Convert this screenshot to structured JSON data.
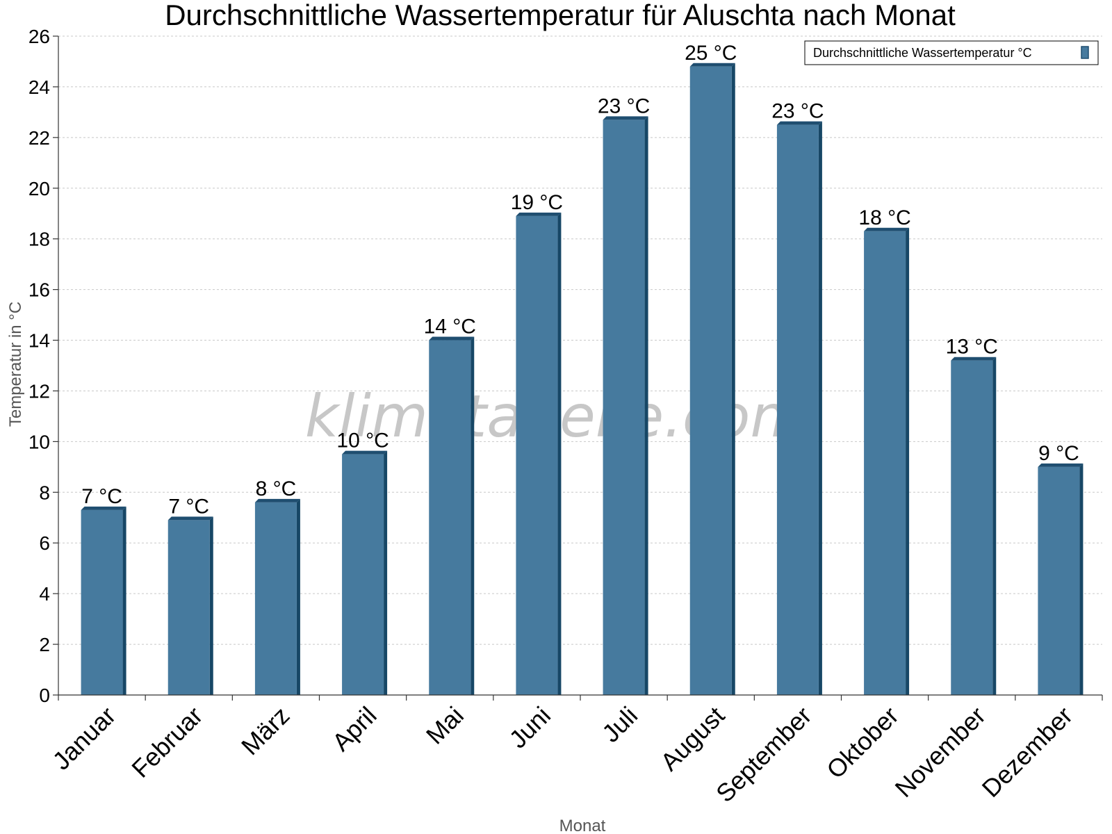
{
  "chart_data": {
    "type": "bar",
    "title": "Durchschnittliche Wassertemperatur für Aluschta nach Monat",
    "xlabel": "Monat",
    "ylabel": "Temperatur in °C",
    "categories": [
      "Januar",
      "Februar",
      "März",
      "April",
      "Mai",
      "Juni",
      "Juli",
      "August",
      "September",
      "Oktober",
      "November",
      "Dezember"
    ],
    "series": [
      {
        "name": "Durchschnittliche Wassertemperatur °C",
        "values": [
          7.3,
          6.9,
          7.6,
          9.5,
          14.0,
          18.9,
          22.7,
          24.8,
          22.5,
          18.3,
          13.2,
          9.0
        ],
        "labels": [
          "7 °C",
          "7 °C",
          "8 °C",
          "10 °C",
          "14 °C",
          "19 °C",
          "23 °C",
          "25 °C",
          "23 °C",
          "18 °C",
          "13 °C",
          "9 °C"
        ]
      }
    ],
    "ylim": [
      0,
      26
    ],
    "yticks": [
      "0",
      "2",
      "4",
      "6",
      "8",
      "10",
      "12",
      "14",
      "16",
      "18",
      "20",
      "22",
      "24",
      "26"
    ],
    "grid": true,
    "legend_position": "top-right",
    "colors": {
      "bar_front": "#467a9e",
      "bar_top": "#1f4e70",
      "bar_side": "#174766"
    }
  },
  "watermark": "klimatabelle.com"
}
